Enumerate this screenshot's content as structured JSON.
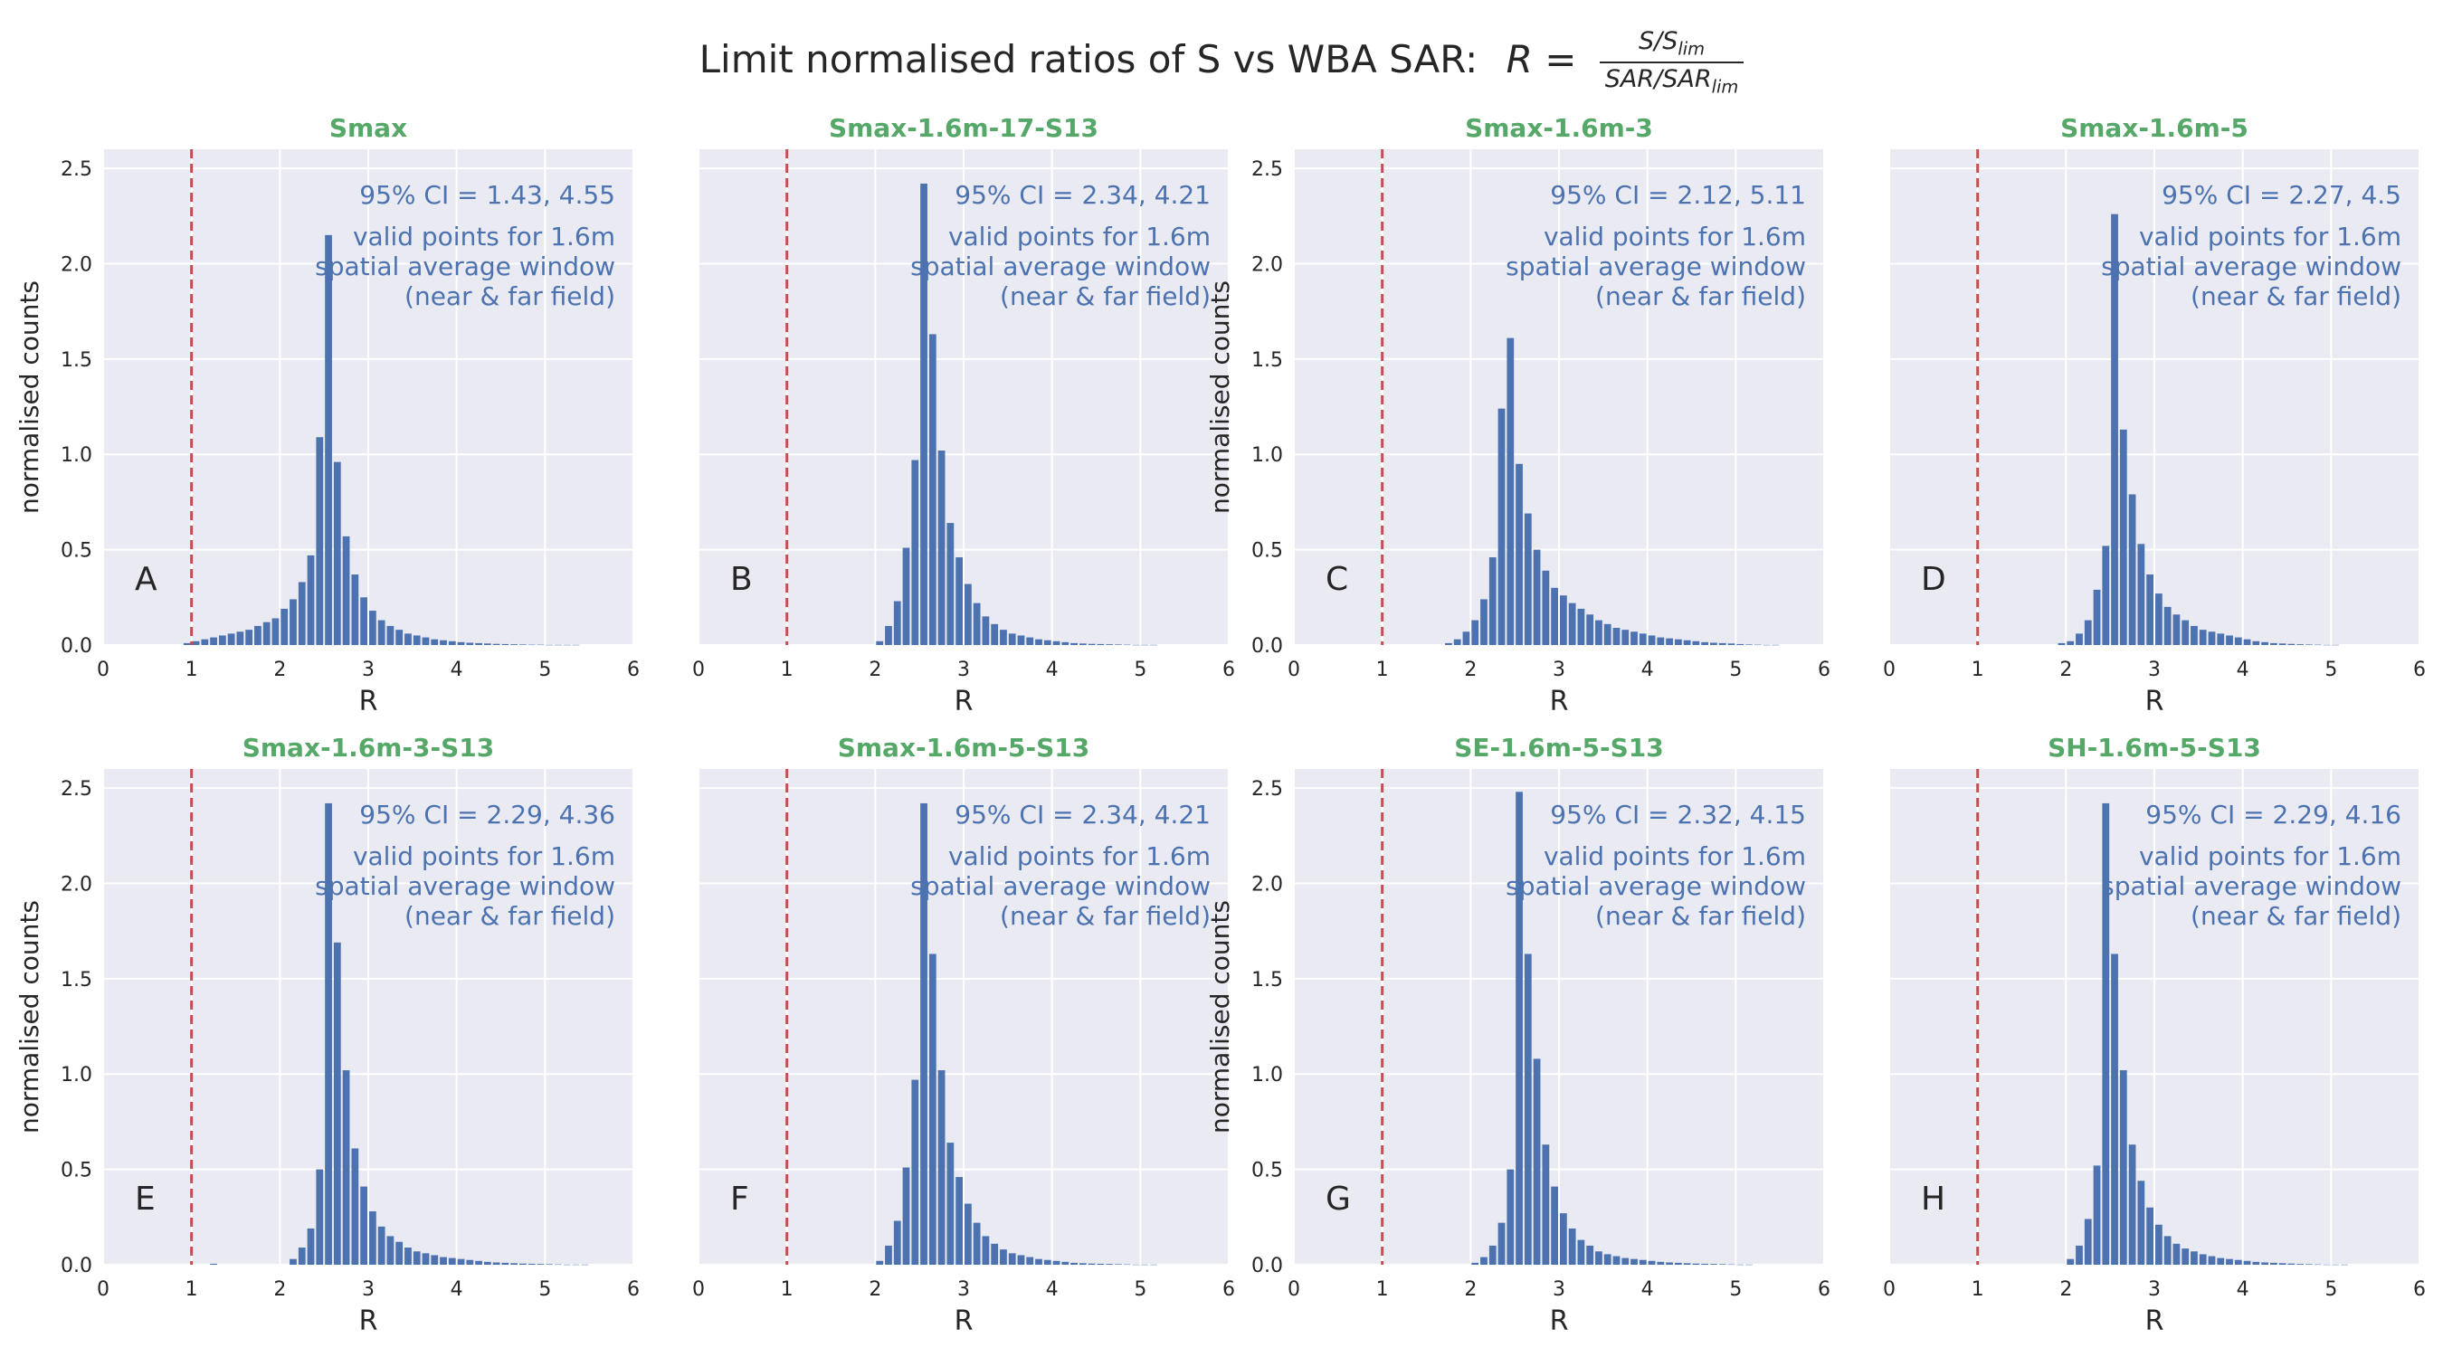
{
  "figure": {
    "title_text": "Limit normalised ratios of S vs WBA SAR:",
    "title_formula": {
      "lhs": "R =",
      "numerator": "S/S",
      "numerator_sub": "lim",
      "denominator": "SAR/SAR",
      "denominator_sub": "lim"
    }
  },
  "style": {
    "bar_color": "#4c72b0",
    "subplot_title_color": "#55a868",
    "annotation_color": "#4c72b0",
    "reference_line_color": "#c44e52",
    "axes_background": "#eaeaf2",
    "grid_color": "#ffffff",
    "text_color": "#262626"
  },
  "chart_data": [
    {
      "type": "bar",
      "panel": "A",
      "title": "Smax",
      "ci_text": "95% CI = 1.43, 4.55",
      "note_lines": [
        "valid points for 1.6m",
        "spatial average window",
        "(near & far field)"
      ],
      "xlabel": "R",
      "ylabel": "normalised counts",
      "xlim": [
        0,
        6
      ],
      "ylim": [
        0,
        2.6
      ],
      "xticks": [
        0,
        1,
        2,
        3,
        4,
        5,
        6
      ],
      "yticks": [
        0.0,
        0.5,
        1.0,
        1.5,
        2.0,
        2.5
      ],
      "reference_x": 1,
      "bin_start": 0.3,
      "bin_width": 0.1,
      "values": [
        0.0,
        0.0,
        0.0,
        0.0,
        0.0,
        0.0,
        0.01,
        0.02,
        0.03,
        0.04,
        0.05,
        0.06,
        0.07,
        0.08,
        0.1,
        0.12,
        0.14,
        0.19,
        0.24,
        0.33,
        0.47,
        1.09,
        2.15,
        0.96,
        0.57,
        0.37,
        0.25,
        0.18,
        0.13,
        0.1,
        0.08,
        0.06,
        0.05,
        0.04,
        0.03,
        0.025,
        0.02,
        0.015,
        0.012,
        0.01,
        0.008,
        0.006,
        0.005,
        0.004,
        0.003,
        0.002,
        0.002,
        0.001,
        0.001,
        0.001,
        0.001,
        0.0,
        0.0,
        0.0,
        0.0
      ]
    },
    {
      "type": "bar",
      "panel": "B",
      "title": "Smax-1.6m-17-S13",
      "ci_text": "95% CI = 2.34, 4.21",
      "note_lines": [
        "valid points for 1.6m",
        "spatial average window",
        "(near & far field)"
      ],
      "xlabel": "R",
      "ylabel": "",
      "xlim": [
        0,
        6
      ],
      "ylim": [
        0,
        2.6
      ],
      "xticks": [
        0,
        1,
        2,
        3,
        4,
        5,
        6
      ],
      "yticks": [
        0.0,
        0.5,
        1.0,
        1.5,
        2.0,
        2.5
      ],
      "reference_x": 1,
      "bin_start": 1.9,
      "bin_width": 0.1,
      "values": [
        0.0,
        0.02,
        0.1,
        0.23,
        0.51,
        0.97,
        2.42,
        1.63,
        1.02,
        0.64,
        0.46,
        0.32,
        0.22,
        0.15,
        0.11,
        0.08,
        0.06,
        0.05,
        0.04,
        0.03,
        0.025,
        0.02,
        0.015,
        0.01,
        0.008,
        0.006,
        0.005,
        0.004,
        0.003,
        0.002,
        0.001,
        0.001,
        0.001,
        0.0,
        0.0,
        0.0,
        0.0,
        0.0,
        0.0
      ]
    },
    {
      "type": "bar",
      "panel": "C",
      "title": "Smax-1.6m-3",
      "ci_text": "95% CI = 2.12, 5.11",
      "note_lines": [
        "valid points for 1.6m",
        "spatial average window",
        "(near & far field)"
      ],
      "xlabel": "R",
      "ylabel": "normalised counts",
      "xlim": [
        0,
        6
      ],
      "ylim": [
        0,
        2.6
      ],
      "xticks": [
        0,
        1,
        2,
        3,
        4,
        5,
        6
      ],
      "yticks": [
        0.0,
        0.5,
        1.0,
        1.5,
        2.0,
        2.5
      ],
      "reference_x": 1,
      "bin_start": 1.6,
      "bin_width": 0.1,
      "values": [
        0.0,
        0.01,
        0.03,
        0.07,
        0.13,
        0.24,
        0.46,
        1.24,
        1.61,
        0.95,
        0.69,
        0.5,
        0.39,
        0.3,
        0.26,
        0.22,
        0.19,
        0.16,
        0.13,
        0.11,
        0.09,
        0.08,
        0.07,
        0.06,
        0.05,
        0.04,
        0.035,
        0.03,
        0.025,
        0.02,
        0.015,
        0.012,
        0.01,
        0.008,
        0.005,
        0.003,
        0.002,
        0.001,
        0.001,
        0.0,
        0.0,
        0.0
      ]
    },
    {
      "type": "bar",
      "panel": "D",
      "title": "Smax-1.6m-5",
      "ci_text": "95% CI = 2.27, 4.5",
      "note_lines": [
        "valid points for 1.6m",
        "spatial average window",
        "(near & far field)"
      ],
      "xlabel": "R",
      "ylabel": "",
      "xlim": [
        0,
        6
      ],
      "ylim": [
        0,
        2.6
      ],
      "xticks": [
        0,
        1,
        2,
        3,
        4,
        5,
        6
      ],
      "yticks": [
        0.0,
        0.5,
        1.0,
        1.5,
        2.0,
        2.5
      ],
      "reference_x": 1,
      "bin_start": 1.8,
      "bin_width": 0.1,
      "values": [
        0.0,
        0.01,
        0.02,
        0.06,
        0.13,
        0.29,
        0.52,
        2.26,
        1.13,
        0.79,
        0.53,
        0.37,
        0.27,
        0.2,
        0.16,
        0.13,
        0.1,
        0.08,
        0.07,
        0.06,
        0.05,
        0.04,
        0.03,
        0.02,
        0.015,
        0.01,
        0.008,
        0.006,
        0.004,
        0.003,
        0.002,
        0.001,
        0.001,
        0.0,
        0.0,
        0.0,
        0.0,
        0.0,
        0.0,
        0.0
      ]
    },
    {
      "type": "bar",
      "panel": "E",
      "title": "Smax-1.6m-3-S13",
      "ci_text": "95% CI = 2.29, 4.36",
      "note_lines": [
        "valid points for 1.6m",
        "spatial average window",
        "(near & far field)"
      ],
      "xlabel": "R",
      "ylabel": "normalised counts",
      "xlim": [
        0,
        6
      ],
      "ylim": [
        0,
        2.6
      ],
      "xticks": [
        0,
        1,
        2,
        3,
        4,
        5,
        6
      ],
      "yticks": [
        0.0,
        0.5,
        1.0,
        1.5,
        2.0,
        2.5
      ],
      "reference_x": 1,
      "bin_start": 1.0,
      "bin_width": 0.1,
      "values": [
        0.0,
        0.0,
        0.005,
        0.0,
        0.0,
        0.0,
        0.0,
        0.0,
        0.0,
        0.0,
        0.0,
        0.03,
        0.09,
        0.19,
        0.5,
        2.42,
        1.69,
        1.02,
        0.61,
        0.41,
        0.28,
        0.2,
        0.15,
        0.12,
        0.09,
        0.07,
        0.06,
        0.05,
        0.04,
        0.035,
        0.03,
        0.025,
        0.02,
        0.015,
        0.012,
        0.01,
        0.008,
        0.006,
        0.005,
        0.004,
        0.003,
        0.002,
        0.001,
        0.001,
        0.001,
        0.0,
        0.0,
        0.0
      ]
    },
    {
      "type": "bar",
      "panel": "F",
      "title": "Smax-1.6m-5-S13",
      "ci_text": "95% CI = 2.34, 4.21",
      "note_lines": [
        "valid points for 1.6m",
        "spatial average window",
        "(near & far field)"
      ],
      "xlabel": "R",
      "ylabel": "",
      "xlim": [
        0,
        6
      ],
      "ylim": [
        0,
        2.6
      ],
      "xticks": [
        0,
        1,
        2,
        3,
        4,
        5,
        6
      ],
      "yticks": [
        0.0,
        0.5,
        1.0,
        1.5,
        2.0,
        2.5
      ],
      "reference_x": 1,
      "bin_start": 1.9,
      "bin_width": 0.1,
      "values": [
        0.0,
        0.02,
        0.1,
        0.23,
        0.51,
        0.97,
        2.42,
        1.63,
        1.02,
        0.64,
        0.46,
        0.32,
        0.22,
        0.15,
        0.11,
        0.08,
        0.06,
        0.05,
        0.04,
        0.03,
        0.025,
        0.02,
        0.015,
        0.01,
        0.008,
        0.006,
        0.005,
        0.004,
        0.003,
        0.002,
        0.001,
        0.001,
        0.001,
        0.0,
        0.0,
        0.0,
        0.0,
        0.0,
        0.0
      ]
    },
    {
      "type": "bar",
      "panel": "G",
      "title": "SE-1.6m-5-S13",
      "ci_text": "95% CI = 2.32, 4.15",
      "note_lines": [
        "valid points for 1.6m",
        "spatial average window",
        "(near & far field)"
      ],
      "xlabel": "R",
      "ylabel": "normalised counts",
      "xlim": [
        0,
        6
      ],
      "ylim": [
        0,
        2.6
      ],
      "xticks": [
        0,
        1,
        2,
        3,
        4,
        5,
        6
      ],
      "yticks": [
        0.0,
        0.5,
        1.0,
        1.5,
        2.0,
        2.5
      ],
      "reference_x": 1,
      "bin_start": 2.0,
      "bin_width": 0.1,
      "values": [
        0.01,
        0.04,
        0.1,
        0.22,
        0.5,
        2.48,
        1.63,
        1.08,
        0.63,
        0.41,
        0.27,
        0.19,
        0.13,
        0.1,
        0.07,
        0.055,
        0.045,
        0.035,
        0.03,
        0.025,
        0.02,
        0.015,
        0.012,
        0.01,
        0.008,
        0.006,
        0.005,
        0.004,
        0.003,
        0.002,
        0.001,
        0.001,
        0.0,
        0.0,
        0.0,
        0.0,
        0.0,
        0.0
      ]
    },
    {
      "type": "bar",
      "panel": "H",
      "title": "SH-1.6m-5-S13",
      "ci_text": "95% CI = 2.29, 4.16",
      "note_lines": [
        "valid points for 1.6m",
        "spatial average window",
        "(near & far field)"
      ],
      "xlabel": "R",
      "ylabel": "",
      "xlim": [
        0,
        6
      ],
      "ylim": [
        0,
        2.6
      ],
      "xticks": [
        0,
        1,
        2,
        3,
        4,
        5,
        6
      ],
      "yticks": [
        0.0,
        0.5,
        1.0,
        1.5,
        2.0,
        2.5
      ],
      "reference_x": 1,
      "bin_start": 1.9,
      "bin_width": 0.1,
      "values": [
        0.0,
        0.03,
        0.1,
        0.24,
        0.52,
        2.42,
        1.63,
        1.02,
        0.63,
        0.44,
        0.3,
        0.21,
        0.15,
        0.11,
        0.085,
        0.07,
        0.055,
        0.045,
        0.035,
        0.03,
        0.025,
        0.02,
        0.015,
        0.012,
        0.01,
        0.008,
        0.006,
        0.004,
        0.003,
        0.002,
        0.001,
        0.001,
        0.001,
        0.0,
        0.0,
        0.0,
        0.0,
        0.0,
        0.0
      ]
    }
  ]
}
